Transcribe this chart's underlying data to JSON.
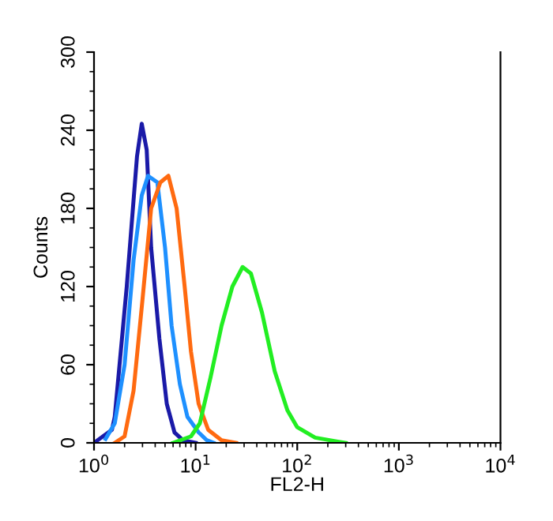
{
  "chart_data": {
    "type": "line",
    "xlabel": "FL2-H",
    "ylabel": "Counts",
    "log": "x",
    "grid": false,
    "marker": "none",
    "line_style": "solid",
    "xlim": [
      1,
      10000
    ],
    "xticks": [
      {
        "value": 1,
        "label": "10$^{0}$"
      },
      {
        "value": 10,
        "label": "10$^{1}$"
      },
      {
        "value": 100,
        "label": "10$^{2}$"
      },
      {
        "value": 1000,
        "label": "10$^{3}$"
      },
      {
        "value": 10000,
        "label": "10$^{4}$"
      }
    ],
    "ylim": [
      0,
      300
    ],
    "yticks": [
      0,
      60,
      120,
      180,
      240,
      300
    ],
    "series": [
      {
        "color": "#1a1aa8",
        "x": [
          1,
          1.5,
          1.6,
          2.1,
          2.65,
          2.95,
          3.3,
          3.65,
          4.4,
          5.2,
          6.2,
          7.5,
          10
        ],
        "values": [
          0,
          10,
          20,
          120,
          220,
          245,
          225,
          150,
          80,
          30,
          8,
          2,
          0
        ]
      },
      {
        "color": "#1e90ff",
        "x": [
          1.3,
          1.6,
          2.0,
          2.45,
          2.95,
          3.4,
          4.2,
          5.0,
          5.8,
          7,
          8.3,
          10.7,
          12.9,
          15
        ],
        "values": [
          3,
          15,
          60,
          140,
          190,
          205,
          200,
          150,
          90,
          45,
          20,
          8,
          2,
          0
        ]
      },
      {
        "color": "#ff6a10",
        "x": [
          1.6,
          2,
          2.45,
          3.0,
          3.65,
          4.5,
          5.4,
          6.5,
          7.8,
          9,
          10.7,
          13.3,
          18,
          25
        ],
        "values": [
          0,
          5,
          40,
          110,
          180,
          200,
          205,
          180,
          120,
          70,
          30,
          10,
          2,
          0
        ]
      },
      {
        "color": "#22ee22",
        "x": [
          6,
          9,
          11,
          14,
          18,
          23,
          29,
          35,
          45,
          60,
          80,
          100,
          150,
          250,
          300
        ],
        "values": [
          0,
          5,
          15,
          50,
          90,
          120,
          135,
          130,
          100,
          55,
          25,
          12,
          4,
          1,
          0
        ]
      }
    ]
  }
}
